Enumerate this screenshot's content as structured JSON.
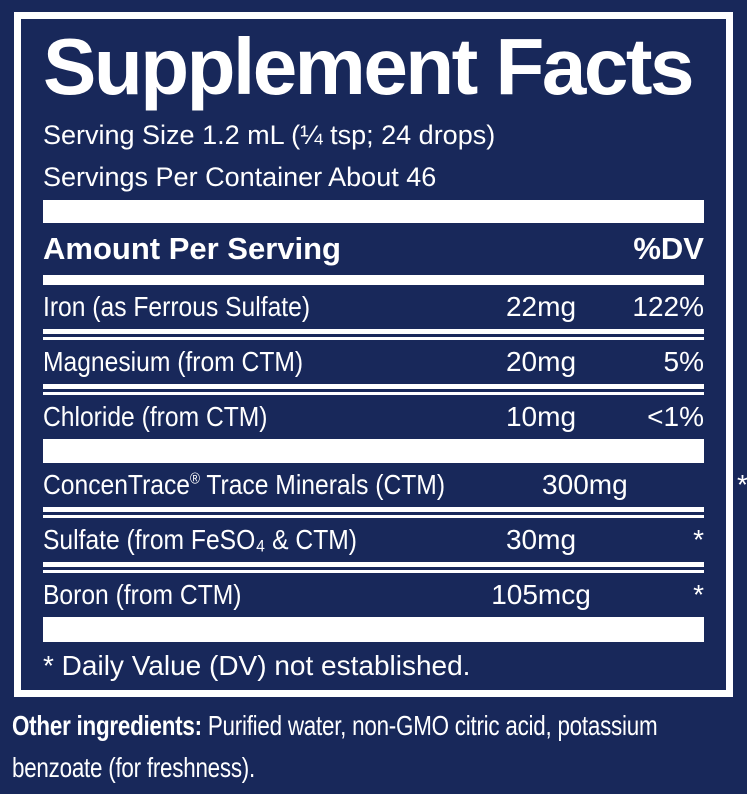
{
  "colors": {
    "navy": "#18285a",
    "white": "#ffffff"
  },
  "panel": {
    "title": "Supplement Facts",
    "serving_size": "Serving Size 1.2 mL (¼ tsp; 24 drops)",
    "servings_per_container": "Servings Per Container About 46",
    "header": {
      "amount_label": "Amount Per Serving",
      "dv_label": "%DV"
    },
    "rows": [
      {
        "label": "Iron (as Ferrous Sulfate)",
        "amount": "22mg",
        "dv": "122%",
        "group": 1
      },
      {
        "label": "Magnesium (from CTM)",
        "amount": "20mg",
        "dv": "5%",
        "group": 1
      },
      {
        "label": "Chloride (from CTM)",
        "amount": "10mg",
        "dv": "<1%",
        "group": 1
      },
      {
        "label": "ConcenTrace® Trace Minerals (CTM)",
        "amount": "300mg",
        "dv": "*",
        "group": 2
      },
      {
        "label": "Sulfate (from FeSO₄ & CTM)",
        "amount": "30mg",
        "dv": "*",
        "group": 2
      },
      {
        "label": "Boron (from CTM)",
        "amount": "105mcg",
        "dv": "*",
        "group": 2
      }
    ],
    "footnote": "* Daily Value (DV) not established."
  },
  "footer": {
    "prefix": "Other ingredients:",
    "line1_rest": " Purified water, non-GMO citric acid, potassium",
    "line2": "benzoate (for freshness)."
  }
}
